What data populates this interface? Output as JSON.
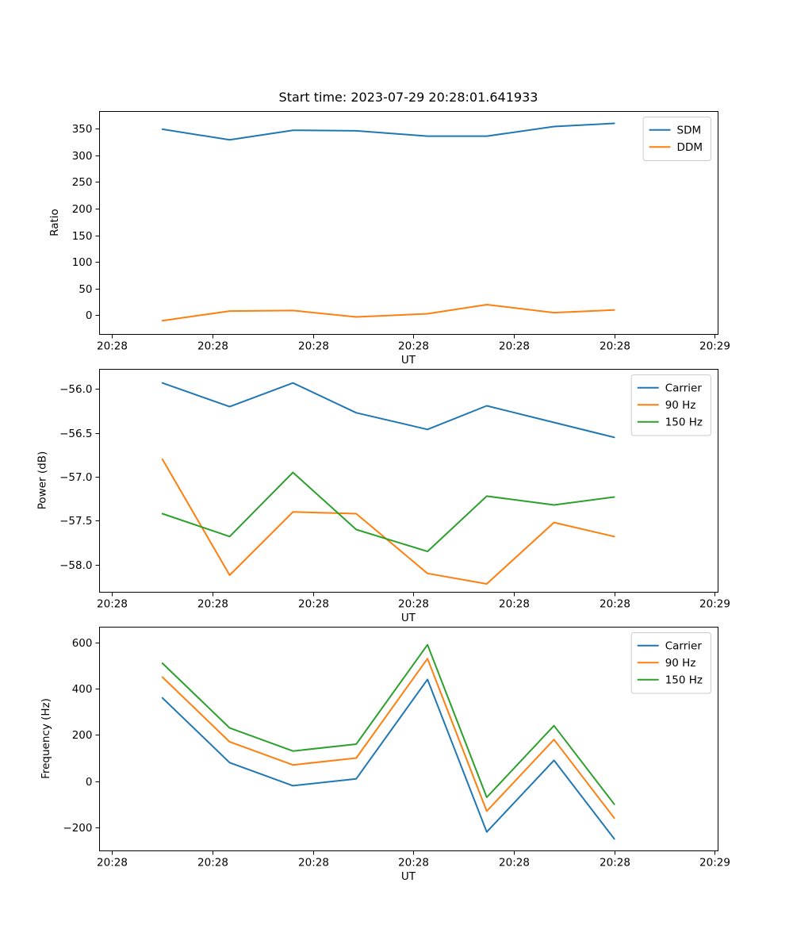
{
  "chart_data": [
    {
      "type": "line",
      "title": "Start time: 2023-07-29 20:28:01.641933",
      "xlabel": "UT",
      "ylabel": "Ratio",
      "legend_position": "upper right",
      "grid": false,
      "xlim": [
        -1.3,
        60.3
      ],
      "ylim": [
        -35,
        383
      ],
      "x_ticks": {
        "positions": [
          0,
          10,
          20,
          30,
          40,
          50,
          60
        ],
        "labels": [
          "20:28",
          "20:28",
          "20:28",
          "20:28",
          "20:28",
          "20:28",
          "20:29"
        ]
      },
      "y_ticks": {
        "positions": [
          0,
          50,
          100,
          150,
          200,
          250,
          300,
          350
        ],
        "labels": [
          "0",
          "50",
          "100",
          "150",
          "200",
          "250",
          "300",
          "350"
        ]
      },
      "x": [
        5,
        11.7,
        18,
        24.3,
        31.4,
        37.3,
        44,
        50
      ],
      "series": [
        {
          "name": "SDM",
          "color": "#1f77b4",
          "values": [
            349,
            329,
            347,
            346,
            336,
            336,
            354,
            360
          ]
        },
        {
          "name": "DDM",
          "color": "#ff7f0e",
          "values": [
            -10,
            8,
            9,
            -3,
            3,
            20,
            5,
            10
          ]
        }
      ]
    },
    {
      "type": "line",
      "title": "",
      "xlabel": "UT",
      "ylabel": "Power (dB)",
      "legend_position": "upper right",
      "grid": false,
      "xlim": [
        -1.3,
        60.3
      ],
      "ylim": [
        -58.31,
        -55.77
      ],
      "x_ticks": {
        "positions": [
          0,
          10,
          20,
          30,
          40,
          50,
          60
        ],
        "labels": [
          "20:28",
          "20:28",
          "20:28",
          "20:28",
          "20:28",
          "20:28",
          "20:29"
        ]
      },
      "y_ticks": {
        "positions": [
          -56.0,
          -56.5,
          -57.0,
          -57.5,
          -58.0
        ],
        "labels": [
          "−56.0",
          "−56.5",
          "−57.0",
          "−57.5",
          "−58.0"
        ]
      },
      "x": [
        5,
        11.7,
        18,
        24.3,
        31.4,
        37.3,
        44,
        50
      ],
      "series": [
        {
          "name": "Carrier",
          "color": "#1f77b4",
          "values": [
            -55.93,
            -56.2,
            -55.93,
            -56.27,
            -56.46,
            -56.19,
            -56.38,
            -56.55
          ]
        },
        {
          "name": "90 Hz",
          "color": "#ff7f0e",
          "values": [
            -56.8,
            -58.12,
            -57.4,
            -57.42,
            -58.1,
            -58.22,
            -57.52,
            -57.68
          ]
        },
        {
          "name": "150 Hz",
          "color": "#2ca02c",
          "values": [
            -57.42,
            -57.68,
            -56.95,
            -57.6,
            -57.85,
            -57.22,
            -57.32,
            -57.23
          ]
        }
      ]
    },
    {
      "type": "line",
      "title": "",
      "xlabel": "UT",
      "ylabel": "Frequency (Hz)",
      "legend_position": "upper right",
      "grid": false,
      "xlim": [
        -1.3,
        60.3
      ],
      "ylim": [
        -300,
        668
      ],
      "x_ticks": {
        "positions": [
          0,
          10,
          20,
          30,
          40,
          50,
          60
        ],
        "labels": [
          "20:28",
          "20:28",
          "20:28",
          "20:28",
          "20:28",
          "20:28",
          "20:29"
        ]
      },
      "y_ticks": {
        "positions": [
          -200,
          0,
          200,
          400,
          600
        ],
        "labels": [
          "−200",
          "0",
          "200",
          "400",
          "600"
        ]
      },
      "x": [
        5,
        11.7,
        18,
        24.3,
        31.4,
        37.3,
        44,
        50
      ],
      "series": [
        {
          "name": "Carrier",
          "color": "#1f77b4",
          "values": [
            360,
            80,
            -20,
            10,
            440,
            -220,
            90,
            -250
          ]
        },
        {
          "name": "90 Hz",
          "color": "#ff7f0e",
          "values": [
            450,
            170,
            70,
            100,
            530,
            -130,
            180,
            -160
          ]
        },
        {
          "name": "150 Hz",
          "color": "#2ca02c",
          "values": [
            510,
            230,
            130,
            160,
            590,
            -70,
            240,
            -100
          ]
        }
      ]
    }
  ]
}
